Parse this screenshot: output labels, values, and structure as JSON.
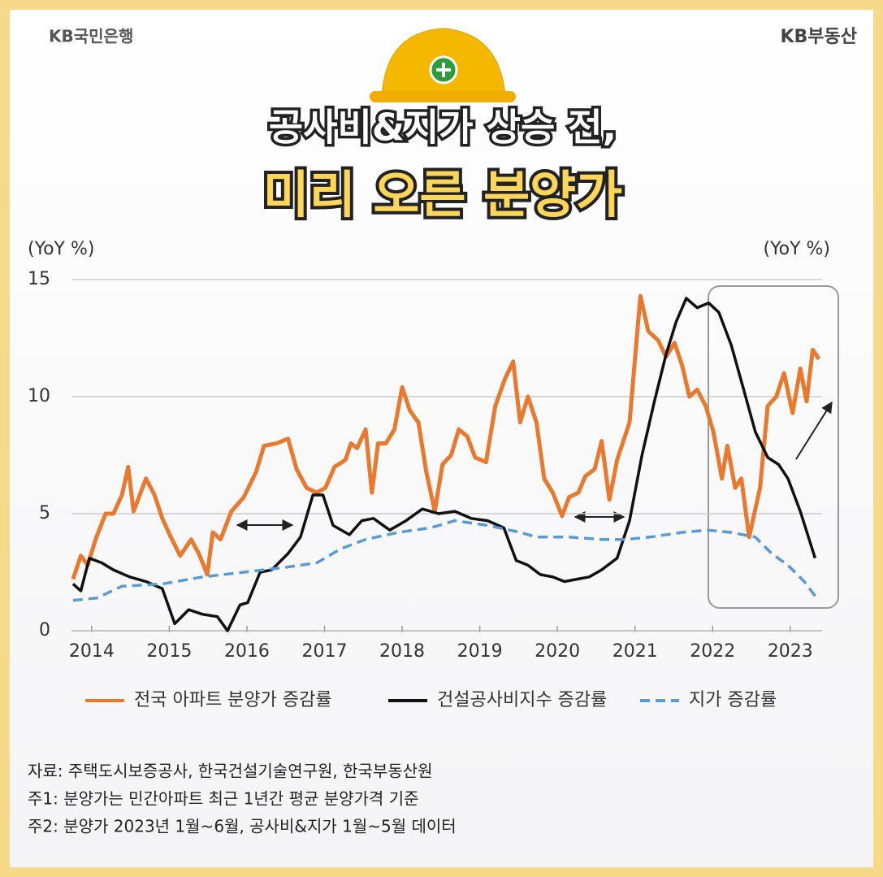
{
  "brand_left": "KB국민은행",
  "brand_right": "KB부동산",
  "title_line1": "공사비&지가 상승 전,",
  "title_line2": "미리 오른 분양가",
  "notes": [
    "자료: 주택도시보증공사, 한국건설기술연구원, 한국부동산원",
    "주1: 분양가는 민간아파트 최근 1년간 평균 분양가격 기준",
    "주2: 분양가 2023년 1월~6월, 공사비&지가 1월~5월 데이터"
  ],
  "chart_data": {
    "type": "line",
    "y_label": "(YoY %)",
    "y2_label": "(YoY %)",
    "xlim": [
      2013.74,
      2023.41
    ],
    "xticks": [
      2014,
      2015,
      2016,
      2017,
      2018,
      2019,
      2020,
      2021,
      2022,
      2023
    ],
    "ylim": [
      0,
      15
    ],
    "yticks": [
      0,
      5,
      10,
      15
    ],
    "grid": true,
    "legend": "bottom",
    "series": [
      {
        "name": "전국 아파트 분양가 증감률",
        "color": "#e8792e",
        "dash": false,
        "x": [
          2013.76,
          2013.86,
          2013.95,
          2014.05,
          2014.18,
          2014.28,
          2014.39,
          2014.47,
          2014.54,
          2014.7,
          2014.81,
          2014.91,
          2015.02,
          2015.14,
          2015.28,
          2015.38,
          2015.49,
          2015.56,
          2015.66,
          2015.8,
          2015.96,
          2016.12,
          2016.22,
          2016.38,
          2016.53,
          2016.64,
          2016.77,
          2016.9,
          2017.01,
          2017.13,
          2017.27,
          2017.34,
          2017.42,
          2017.53,
          2017.61,
          2017.69,
          2017.79,
          2017.9,
          2018.0,
          2018.1,
          2018.21,
          2018.31,
          2018.42,
          2018.52,
          2018.63,
          2018.73,
          2018.84,
          2018.94,
          2019.08,
          2019.2,
          2019.33,
          2019.43,
          2019.52,
          2019.62,
          2019.73,
          2019.83,
          2019.94,
          2020.06,
          2020.15,
          2020.27,
          2020.36,
          2020.48,
          2020.57,
          2020.67,
          2020.77,
          2020.93,
          2021.02,
          2021.07,
          2021.17,
          2021.3,
          2021.4,
          2021.51,
          2021.61,
          2021.7,
          2021.8,
          2021.91,
          2022.01,
          2022.12,
          2022.19,
          2022.29,
          2022.37,
          2022.47,
          2022.61,
          2022.71,
          2022.82,
          2022.92,
          2023.03,
          2023.13,
          2023.21,
          2023.29,
          2023.37
        ],
        "values": [
          2.2,
          3.2,
          2.8,
          3.9,
          5.0,
          5.0,
          5.8,
          7.0,
          5.1,
          6.5,
          5.8,
          4.8,
          4.0,
          3.2,
          3.9,
          3.3,
          2.4,
          4.2,
          3.9,
          5.1,
          5.7,
          6.8,
          7.9,
          8.0,
          8.2,
          6.9,
          6.1,
          5.9,
          6.1,
          7.0,
          7.3,
          8.0,
          7.8,
          8.6,
          5.9,
          8.0,
          8.0,
          8.6,
          10.4,
          9.4,
          8.9,
          6.8,
          5.1,
          7.1,
          7.5,
          8.6,
          8.3,
          7.4,
          7.2,
          9.6,
          10.8,
          11.5,
          8.9,
          10.0,
          8.9,
          6.5,
          5.9,
          4.9,
          5.7,
          5.9,
          6.6,
          6.9,
          8.1,
          5.6,
          7.3,
          8.9,
          12.4,
          14.3,
          12.8,
          12.4,
          11.7,
          12.3,
          11.3,
          10.0,
          10.3,
          9.6,
          8.5,
          6.5,
          7.9,
          6.1,
          6.5,
          4.0,
          6.1,
          9.6,
          10.0,
          11.0,
          9.3,
          11.2,
          9.8,
          12.0,
          11.6
        ]
      },
      {
        "name": "건설공사비지수 증감률",
        "color": "#111111",
        "dash": false,
        "x": [
          2013.76,
          2013.86,
          2013.97,
          2014.13,
          2014.28,
          2014.49,
          2014.7,
          2014.91,
          2015.07,
          2015.25,
          2015.43,
          2015.62,
          2015.75,
          2015.91,
          2016.01,
          2016.17,
          2016.32,
          2016.53,
          2016.69,
          2016.85,
          2016.98,
          2017.11,
          2017.32,
          2017.48,
          2017.63,
          2017.84,
          2018.05,
          2018.26,
          2018.47,
          2018.68,
          2018.89,
          2019.1,
          2019.31,
          2019.47,
          2019.62,
          2019.78,
          2019.94,
          2020.09,
          2020.25,
          2020.41,
          2020.57,
          2020.77,
          2020.93,
          2021.09,
          2021.25,
          2021.4,
          2021.53,
          2021.66,
          2021.8,
          2021.95,
          2022.08,
          2022.24,
          2022.4,
          2022.55,
          2022.71,
          2022.85,
          2022.97,
          2023.13,
          2023.32
        ],
        "values": [
          2.0,
          1.7,
          3.1,
          2.9,
          2.6,
          2.3,
          2.1,
          1.8,
          0.3,
          0.9,
          0.7,
          0.6,
          0.0,
          1.1,
          1.2,
          2.5,
          2.6,
          3.3,
          4.0,
          5.8,
          5.8,
          4.5,
          4.1,
          4.7,
          4.8,
          4.3,
          4.7,
          5.2,
          5.0,
          5.1,
          4.8,
          4.7,
          4.4,
          3.0,
          2.8,
          2.4,
          2.3,
          2.1,
          2.2,
          2.3,
          2.6,
          3.1,
          4.7,
          7.5,
          9.8,
          11.8,
          13.2,
          14.2,
          13.8,
          14.0,
          13.6,
          12.2,
          10.3,
          8.5,
          7.4,
          7.1,
          6.5,
          5.1,
          3.1
        ]
      },
      {
        "name": "지가 증감률",
        "color": "#5b9bd5",
        "dash": true,
        "x": [
          2013.76,
          2014.07,
          2014.39,
          2014.91,
          2015.43,
          2015.96,
          2016.48,
          2016.9,
          2017.21,
          2017.53,
          2017.95,
          2018.37,
          2018.68,
          2019.1,
          2019.52,
          2019.73,
          2020.15,
          2020.57,
          2020.88,
          2021.19,
          2021.61,
          2021.93,
          2022.24,
          2022.55,
          2022.76,
          2022.97,
          2023.18,
          2023.34
        ],
        "values": [
          1.3,
          1.4,
          1.9,
          2.0,
          2.3,
          2.5,
          2.7,
          2.9,
          3.5,
          3.9,
          4.2,
          4.4,
          4.7,
          4.5,
          4.2,
          4.0,
          4.0,
          3.9,
          3.9,
          4.0,
          4.2,
          4.3,
          4.2,
          4.0,
          3.3,
          2.8,
          2.1,
          1.4
        ]
      }
    ]
  }
}
